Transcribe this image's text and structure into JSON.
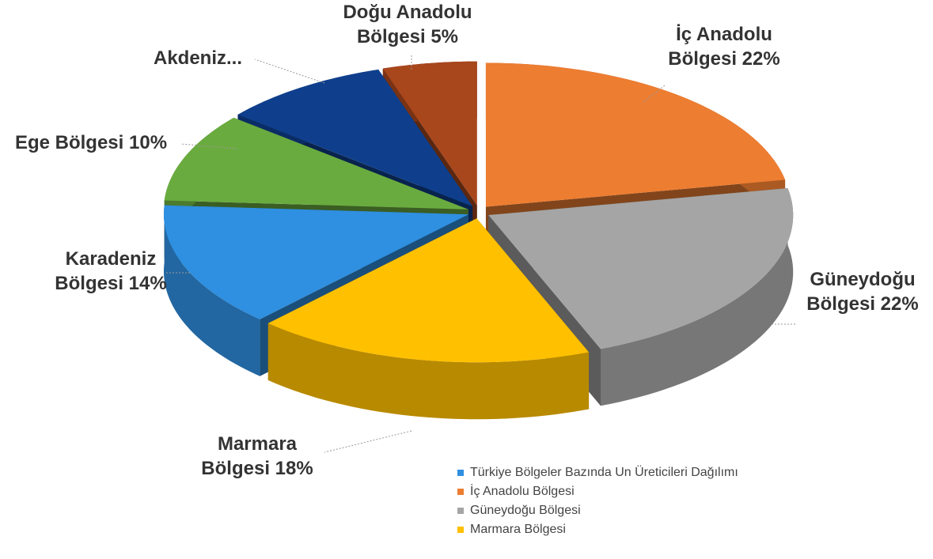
{
  "chart_data": {
    "type": "pie3d",
    "categories": [
      "İç Anadolu Bölgesi",
      "Güneydoğu Bölgesi",
      "Marmara Bölgesi",
      "Karadeniz Bölgesi",
      "Ege Bölgesi",
      "Akdeniz...",
      "Doğu Anadolu Bölgesi"
    ],
    "values": [
      22,
      22,
      18,
      14,
      10,
      9,
      5
    ],
    "value_labels": [
      "22%",
      "22%",
      "18%",
      "14%",
      "10%",
      null,
      "5%"
    ],
    "colors": [
      "#ed7d31",
      "#a5a5a5",
      "#ffc000",
      "#2f8fe0",
      "#6aab3f",
      "#0f3f8c",
      "#a8461c"
    ],
    "legend": [
      {
        "name": "Türkiye Bölgeler Bazında Un Üreticileri Dağılımı",
        "color": "#2f8fe0"
      },
      {
        "name": "İç Anadolu Bölgesi",
        "color": "#ed7d31"
      },
      {
        "name": "Güneydoğu Bölgesi",
        "color": "#a5a5a5"
      },
      {
        "name": "Marmara Bölgesi",
        "color": "#ffc000"
      }
    ]
  }
}
